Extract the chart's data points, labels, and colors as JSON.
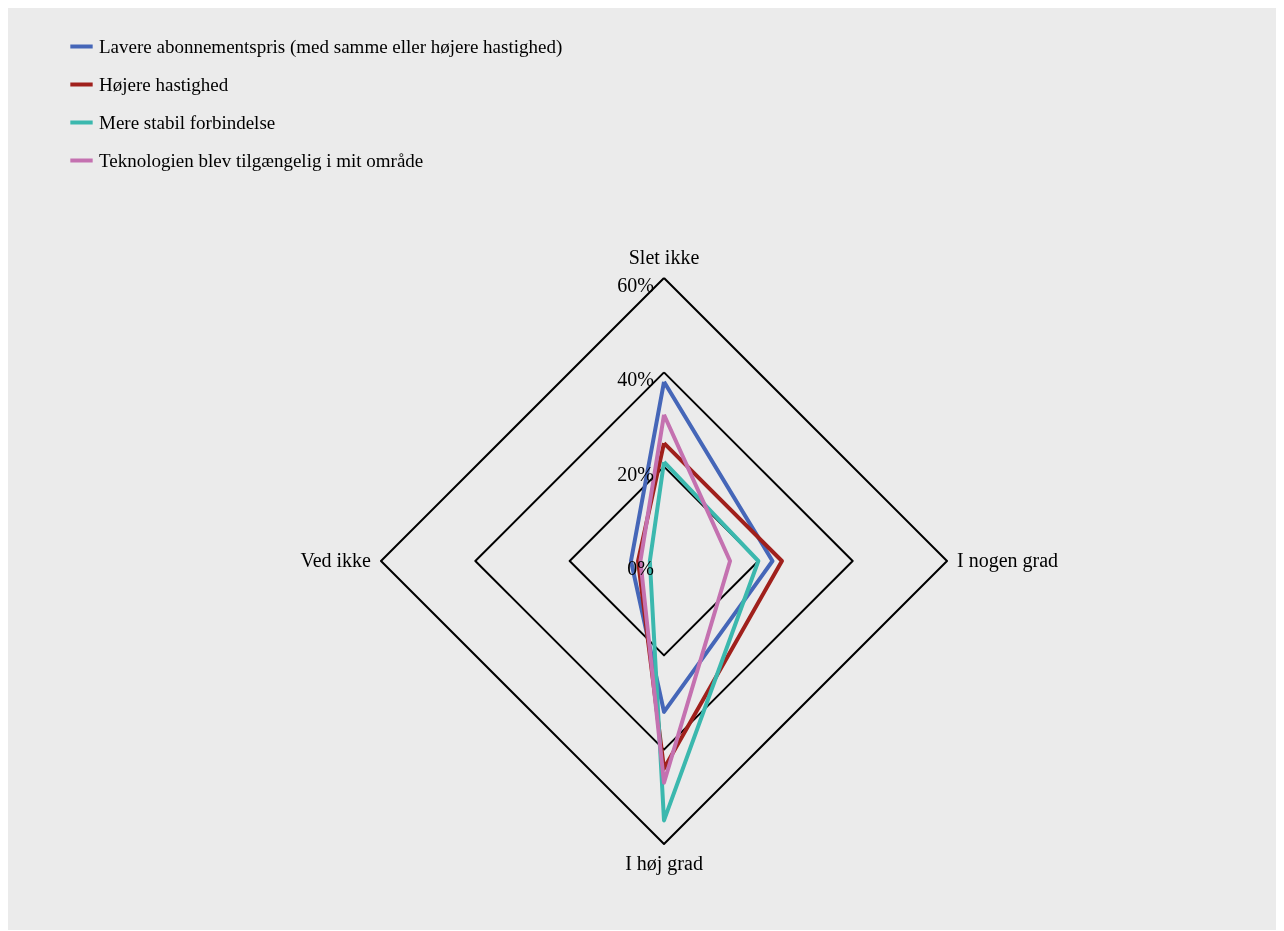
{
  "chart_data": {
    "type": "radar",
    "categories": [
      "Slet ikke",
      "I nogen grad",
      "I høj grad",
      "Ved ikke"
    ],
    "series": [
      {
        "name": "Lavere abonnementspris (med samme eller højere hastighed)",
        "color": "#4566b8",
        "values": [
          38,
          23,
          32,
          7
        ]
      },
      {
        "name": "Højere hastighed",
        "color": "#a0201c",
        "values": [
          25,
          25,
          44,
          5.5
        ]
      },
      {
        "name": "Mere stabil forbindelse",
        "color": "#3bb8ae",
        "values": [
          21,
          20,
          55,
          3
        ]
      },
      {
        "name": "Teknologien blev tilgængelig i mit område",
        "color": "#c471b0",
        "values": [
          31,
          14,
          47,
          5
        ]
      }
    ],
    "ylim": [
      0,
      60
    ],
    "yticks": [
      {
        "value": 0,
        "label": "0%"
      },
      {
        "value": 20,
        "label": "20%"
      },
      {
        "value": 40,
        "label": "40%"
      },
      {
        "value": 60,
        "label": "60%"
      }
    ],
    "grid": true,
    "legend": "top left"
  }
}
